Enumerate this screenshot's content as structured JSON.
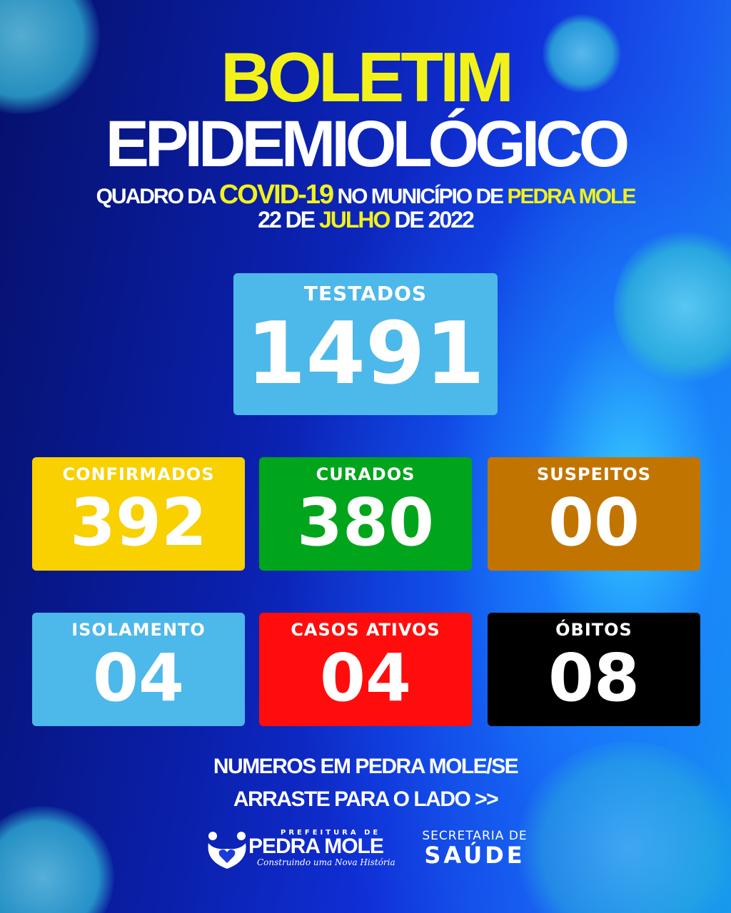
{
  "header": {
    "title_line1": "BOLETIM",
    "title_line2": "EPIDEMIOLÓGICO",
    "subtitle": {
      "part1": "QUADRO DA",
      "part2": "COVID-19",
      "part3": "NO MUNICÍPIO DE",
      "part4": "PEDRA MOLE"
    },
    "date": {
      "part1": "22 DE",
      "part2": "JULHO",
      "part3": "DE 2022"
    }
  },
  "stats": [
    {
      "label": "TESTADOS",
      "value": "1491",
      "color": "#4db8ea"
    },
    {
      "label": "CONFIRMADOS",
      "value": "392",
      "color": "#f9d000"
    },
    {
      "label": "CURADOS",
      "value": "380",
      "color": "#00a51c"
    },
    {
      "label": "SUSPEITOS",
      "value": "00",
      "color": "#c27400"
    },
    {
      "label": "ISOLAMENTO",
      "value": "04",
      "color": "#4db8ea"
    },
    {
      "label": "CASOS ATIVOS",
      "value": "04",
      "color": "#ff0d0d"
    },
    {
      "label": "ÓBITOS",
      "value": "08",
      "color": "#000000"
    }
  ],
  "footer": {
    "line1": "NUMEROS EM PEDRA MOLE/SE",
    "line2": "ARRASTE PARA O LADO >>",
    "logo_prefeitura": {
      "top": "PREFEITURA DE",
      "name": "PEDRA MOLE",
      "tagline": "Construindo uma Nova História"
    },
    "logo_secretaria": {
      "top": "SECRETARIA DE",
      "name": "SAÚDE"
    }
  }
}
